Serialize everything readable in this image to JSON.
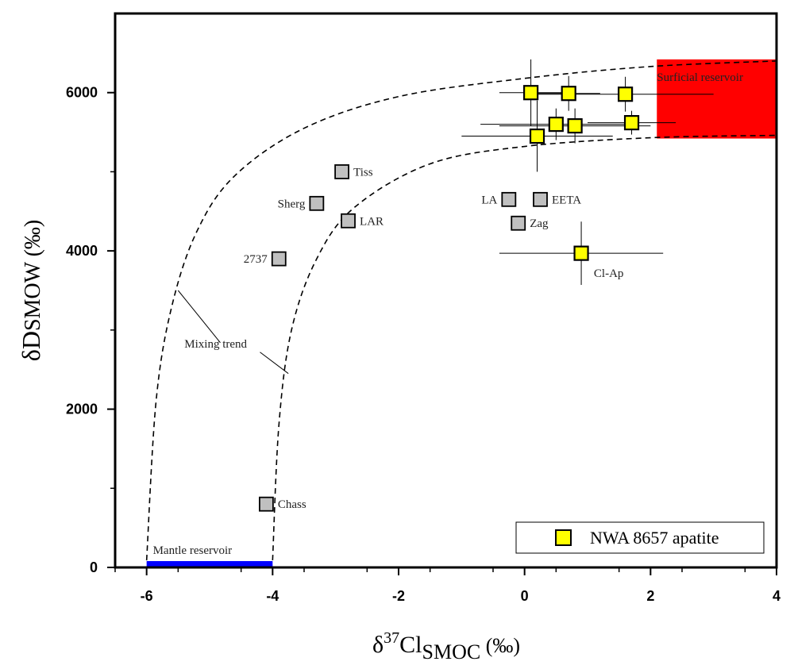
{
  "chart_data": {
    "type": "scatter",
    "xlim": [
      -6.5,
      4
    ],
    "ylim": [
      0,
      7000
    ],
    "x_ticks": [
      -6,
      -4,
      -2,
      0,
      2,
      4
    ],
    "y_ticks": [
      0,
      2000,
      4000,
      6000
    ],
    "x_tick_labels": [
      "-6",
      "-4",
      "-2",
      "0",
      "2",
      "4"
    ],
    "y_tick_labels": [
      "0",
      "2000",
      "4000",
      "6000"
    ],
    "xlabel": {
      "prefix": "δ",
      "sup": "37",
      "main": "Cl",
      "sub": "SMOC",
      "unit": " (‰)"
    },
    "ylabel": {
      "prefix": "δD",
      "sub": "SMOW",
      "unit": " (‰)"
    },
    "legend": {
      "position": "bottom-right",
      "label": "NWA 8657 apatite"
    },
    "series": [
      {
        "name": "NWA 8657 apatite",
        "color": "#ffff00",
        "points": [
          {
            "x": 0.1,
            "y": 6000,
            "xerr": 0.5,
            "yerr": 420
          },
          {
            "x": 0.7,
            "y": 5990,
            "xerr": 0.5,
            "yerr": 220
          },
          {
            "x": 1.6,
            "y": 5980,
            "xerr": 1.4,
            "yerr": 220
          },
          {
            "x": 0.5,
            "y": 5600,
            "xerr": 1.2,
            "yerr": 200
          },
          {
            "x": 0.8,
            "y": 5580,
            "xerr": 1.2,
            "yerr": 220
          },
          {
            "x": 1.7,
            "y": 5620,
            "xerr": 0.7,
            "yerr": 150
          },
          {
            "x": 0.2,
            "y": 5450,
            "xerr": 1.2,
            "yerr": 450
          },
          {
            "x": 0.9,
            "y": 3970,
            "xerr": 1.3,
            "yerr": 400
          }
        ]
      },
      {
        "name": "",
        "color": "#c0c0c0",
        "points": [
          {
            "x": -2.9,
            "y": 5000,
            "label": "Tiss",
            "label_side": "right"
          },
          {
            "x": -3.3,
            "y": 4600,
            "label": "Sherg",
            "label_side": "left"
          },
          {
            "x": -2.8,
            "y": 4380,
            "label": "LAR",
            "label_side": "right"
          },
          {
            "x": -3.9,
            "y": 3900,
            "label": "2737",
            "label_side": "left"
          },
          {
            "x": -0.25,
            "y": 4650,
            "label": "LA",
            "label_side": "left"
          },
          {
            "x": 0.25,
            "y": 4650,
            "label": "EETA",
            "label_side": "right"
          },
          {
            "x": -0.1,
            "y": 4350,
            "label": "Zag",
            "label_side": "right"
          },
          {
            "x": -4.1,
            "y": 800,
            "label": "Chass",
            "label_side": "right"
          }
        ]
      }
    ],
    "annotations": [
      {
        "text": "Surficial reservoir",
        "x": 2.1,
        "y": 6150
      },
      {
        "text": "Mantle reservoir",
        "x": -5.9,
        "y": 170
      },
      {
        "text": "Cl-Ap",
        "x": 1.1,
        "y": 3670
      },
      {
        "text": "Mixing trend",
        "x": -5.4,
        "y": 2780
      }
    ],
    "regions": [
      {
        "name": "Surficial reservoir",
        "x": [
          2.1,
          4.0
        ],
        "y": [
          5420,
          6420
        ],
        "color": "#ff0000"
      },
      {
        "name": "Mantle reservoir",
        "x": [
          -6.0,
          -4.0
        ],
        "y": [
          0,
          80
        ],
        "color": "#0000ff"
      }
    ],
    "mixing_curves": [
      {
        "points": [
          [
            -6.0,
            90
          ],
          [
            -5.85,
            2100
          ],
          [
            -5.6,
            3300
          ],
          [
            -5.2,
            4250
          ],
          [
            -4.6,
            4950
          ],
          [
            -3.5,
            5550
          ],
          [
            -2.0,
            5950
          ],
          [
            0.0,
            6180
          ],
          [
            2.0,
            6330
          ],
          [
            4.0,
            6400
          ]
        ]
      },
      {
        "points": [
          [
            -4.0,
            90
          ],
          [
            -3.9,
            1800
          ],
          [
            -3.7,
            3000
          ],
          [
            -3.3,
            3900
          ],
          [
            -2.7,
            4550
          ],
          [
            -1.5,
            5100
          ],
          [
            0.0,
            5320
          ],
          [
            2.0,
            5430
          ],
          [
            4.0,
            5460
          ]
        ]
      }
    ],
    "mixing_trend_leaders": [
      {
        "from": [
          -4.83,
          2840
        ],
        "to": [
          -5.5,
          3500
        ]
      },
      {
        "from": [
          -4.2,
          2720
        ],
        "to": [
          -3.75,
          2450
        ]
      }
    ]
  }
}
